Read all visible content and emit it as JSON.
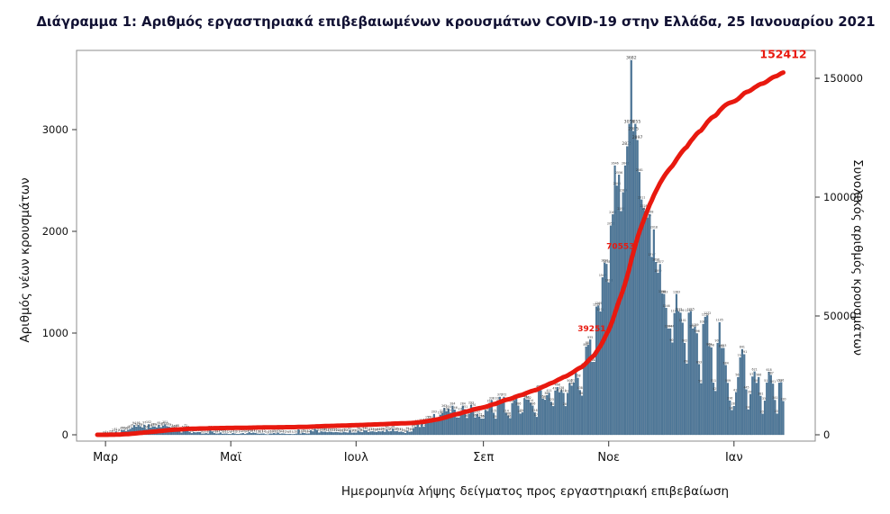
{
  "title": "Διάγραμμα 1: Αριθμός εργαστηριακά επιβεβαιωμένων κρουσμάτων COVID-19 στην Ελλάδα, 25 Ιανουαρίου 2021",
  "chart_data": {
    "type": "bar",
    "combo": "bar+line",
    "title": "Διάγραμμα 1: Αριθμός εργαστηριακά επιβεβαιωμένων κρουσμάτων COVID-19 στην Ελλάδα, 25 Ιανουαρίου 2021",
    "x_axis": {
      "label": "Ημερομηνία λήψης δείγματος προς εργαστηριακή επιβεβαίωση",
      "ticks": [
        {
          "label": "Μαρ",
          "day": 4
        },
        {
          "label": "Μαϊ",
          "day": 65
        },
        {
          "label": "Ιουλ",
          "day": 126
        },
        {
          "label": "Σεπ",
          "day": 188
        },
        {
          "label": "Νοε",
          "day": 249
        },
        {
          "label": "Ιαν",
          "day": 310
        }
      ]
    },
    "left_axis": {
      "label": "Αριθμός νέων κρουσμάτων",
      "ticks": [
        0,
        1000,
        2000,
        3000
      ],
      "max": 3000
    },
    "right_axis": {
      "label": "Συνολικός αριθμός κρουσμάτων",
      "ticks": [
        0,
        50000,
        100000,
        150000
      ],
      "max": 150000
    },
    "bars": {
      "name": "Αριθμός νέων κρουσμάτων (ημερήσια)",
      "values": [
        1,
        2,
        1,
        3,
        4,
        3,
        7,
        10,
        21,
        31,
        17,
        21,
        45,
        46,
        35,
        48,
        57,
        71,
        94,
        78,
        95,
        82,
        71,
        97,
        56,
        102,
        69,
        82,
        80,
        71,
        95,
        74,
        89,
        101,
        83,
        77,
        71,
        60,
        62,
        68,
        31,
        20,
        52,
        71,
        56,
        27,
        15,
        25,
        22,
        26,
        25,
        10,
        11,
        15,
        10,
        56,
        31,
        15,
        10,
        12,
        22,
        9,
        10,
        11,
        7,
        6,
        15,
        10,
        7,
        7,
        12,
        15,
        7,
        14,
        24,
        15,
        21,
        17,
        10,
        9,
        11,
        12,
        5,
        3,
        10,
        10,
        15,
        11,
        20,
        9,
        12,
        10,
        7,
        6,
        8,
        5,
        7,
        10,
        52,
        10,
        19,
        15,
        10,
        12,
        43,
        32,
        56,
        46,
        21,
        32,
        28,
        30,
        24,
        29,
        27,
        23,
        26,
        24,
        22,
        20,
        28,
        23,
        21,
        42,
        19,
        21,
        20,
        39,
        28,
        24,
        43,
        41,
        25,
        31,
        33,
        29,
        26,
        34,
        31,
        36,
        27,
        50,
        32,
        35,
        58,
        33,
        35,
        27,
        31,
        24,
        16,
        39,
        27,
        31,
        65,
        78,
        110,
        75,
        121,
        77,
        124,
        153,
        151,
        124,
        203,
        126,
        135,
        196,
        212,
        262,
        230,
        254,
        217,
        284,
        246,
        169,
        168,
        230,
        284,
        251,
        164,
        207,
        293,
        270,
        168,
        203,
        177,
        158,
        158,
        241,
        233,
        312,
        338,
        215,
        156,
        338,
        372,
        310,
        372,
        214,
        188,
        162,
        310,
        339,
        358,
        286,
        207,
        218,
        358,
        346,
        342,
        314,
        286,
        218,
        174,
        453,
        436,
        354,
        342,
        388,
        411,
        323,
        280,
        434,
        468,
        417,
        438,
        411,
        280,
        410,
        508,
        482,
        512,
        611,
        558,
        438,
        384,
        667,
        865,
        882,
        935,
        714,
        715,
        1259,
        1269,
        1211,
        1547,
        1690,
        1678,
        1498,
        2056,
        2166,
        2646,
        2448,
        2556,
        2198,
        2383,
        2646,
        2835,
        3056,
        3682,
        2985,
        3055,
        2897,
        2581,
        2311,
        2228,
        2198,
        2135,
        2168,
        1747,
        2018,
        1698,
        1590,
        1677,
        1388,
        1383,
        1246,
        1044,
        1044,
        906,
        1195,
        1383,
        1212,
        1199,
        1101,
        902,
        699,
        1199,
        1215,
        1044,
        1059,
        996,
        693,
        505,
        1088,
        1159,
        1172,
        869,
        858,
        511,
        429,
        902,
        1105,
        852,
        853,
        684,
        509,
        336,
        241,
        282,
        418,
        566,
        759,
        841,
        791,
        445,
        248,
        399,
        571,
        621,
        509,
        566,
        381,
        205,
        334,
        511,
        618,
        587,
        501,
        341,
        207,
        510,
        516,
        330
      ]
    },
    "line": {
      "name": "Συνολικός αριθμός κρουσμάτων (αθροιστικά)",
      "final_total": 152412
    },
    "annotations": [
      {
        "day": 246,
        "label": "39251"
      },
      {
        "day": 260,
        "label": "70553"
      },
      {
        "day": 334,
        "label": "152412"
      }
    ],
    "colors": {
      "bar": "#4f7899",
      "bar_edge": "#2f5878",
      "line": "#e8190f",
      "bar_label": "#3a3a3a",
      "frame": "#8c8c8c",
      "tick_text": "#111111"
    }
  }
}
